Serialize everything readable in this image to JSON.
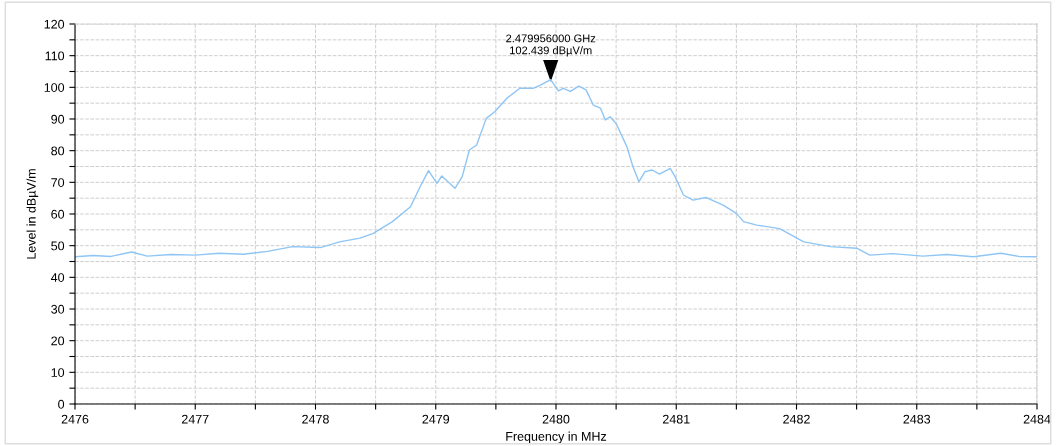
{
  "chart_data": {
    "type": "line",
    "xlabel": "Frequency in MHz",
    "ylabel": "Level in dBµV/m",
    "x": [
      2476.0,
      2476.15,
      2476.3,
      2476.47,
      2476.6,
      2476.8,
      2477.0,
      2477.2,
      2477.4,
      2477.6,
      2477.81,
      2478.04,
      2478.2,
      2478.37,
      2478.48,
      2478.64,
      2478.79,
      2478.87,
      2478.94,
      2479.01,
      2479.05,
      2479.16,
      2479.22,
      2479.28,
      2479.34,
      2479.42,
      2479.49,
      2479.59,
      2479.7,
      2479.81,
      2479.87,
      2479.956,
      2480.02,
      2480.06,
      2480.12,
      2480.19,
      2480.25,
      2480.31,
      2480.37,
      2480.41,
      2480.45,
      2480.5,
      2480.59,
      2480.64,
      2480.69,
      2480.74,
      2480.8,
      2480.86,
      2480.95,
      2480.99,
      2481.06,
      2481.14,
      2481.25,
      2481.39,
      2481.5,
      2481.56,
      2481.67,
      2481.86,
      2482.06,
      2482.28,
      2482.5,
      2482.61,
      2482.8,
      2483.05,
      2483.25,
      2483.47,
      2483.7,
      2483.85,
      2484.0
    ],
    "series": [
      {
        "color": "#8ec5f5",
        "values": [
          46.5,
          46.9,
          46.6,
          48.0,
          46.7,
          47.2,
          47.0,
          47.6,
          47.3,
          48.2,
          49.7,
          49.4,
          51.2,
          52.4,
          53.9,
          57.6,
          62.3,
          68.6,
          73.7,
          69.7,
          72.0,
          68.1,
          71.8,
          80.2,
          81.8,
          90.2,
          92.3,
          96.5,
          99.7,
          99.7,
          100.7,
          102.439,
          98.9,
          99.7,
          98.7,
          100.4,
          99.2,
          94.4,
          93.4,
          89.7,
          90.7,
          88.6,
          81.2,
          74.9,
          70.2,
          73.4,
          73.9,
          72.6,
          74.4,
          71.8,
          66.0,
          64.4,
          65.2,
          62.8,
          60.2,
          57.6,
          56.5,
          55.4,
          51.2,
          49.7,
          49.2,
          47.0,
          47.5,
          46.7,
          47.2,
          46.5,
          47.6,
          46.6,
          46.5
        ]
      }
    ],
    "xlim": [
      2476,
      2484
    ],
    "xticks": [
      2476,
      {
        "value": 2476.5,
        "label": null
      },
      2477,
      {
        "value": 2477.5,
        "label": null
      },
      2478,
      {
        "value": 2478.5,
        "label": null
      },
      2479,
      {
        "value": 2479.5,
        "label": null
      },
      2480,
      {
        "value": 2480.5,
        "label": null
      },
      2481,
      {
        "value": 2481.5,
        "label": null
      },
      2482,
      {
        "value": 2482.5,
        "label": null
      },
      2483,
      {
        "value": 2483.5,
        "label": null
      },
      2484
    ],
    "ylim": [
      0,
      120
    ],
    "yticks": [
      0,
      {
        "value": 5,
        "label": null
      },
      10,
      {
        "value": 15,
        "label": null
      },
      20,
      {
        "value": 25,
        "label": null
      },
      30,
      {
        "value": 35,
        "label": null
      },
      40,
      {
        "value": 45,
        "label": null
      },
      50,
      {
        "value": 55,
        "label": null
      },
      60,
      {
        "value": 65,
        "label": null
      },
      70,
      {
        "value": 75,
        "label": null
      },
      80,
      {
        "value": 85,
        "label": null
      },
      90,
      {
        "value": 95,
        "label": null
      },
      100,
      {
        "value": 105,
        "label": null
      },
      110,
      {
        "value": 115,
        "label": null
      },
      120
    ],
    "grid": true,
    "legend": false,
    "marker": "none",
    "line_style": "solid",
    "annotations": [
      {
        "text": "2.479956000 GHz\n102.439 dBµV/m",
        "x": 2479.956,
        "y": 102.439
      }
    ]
  }
}
